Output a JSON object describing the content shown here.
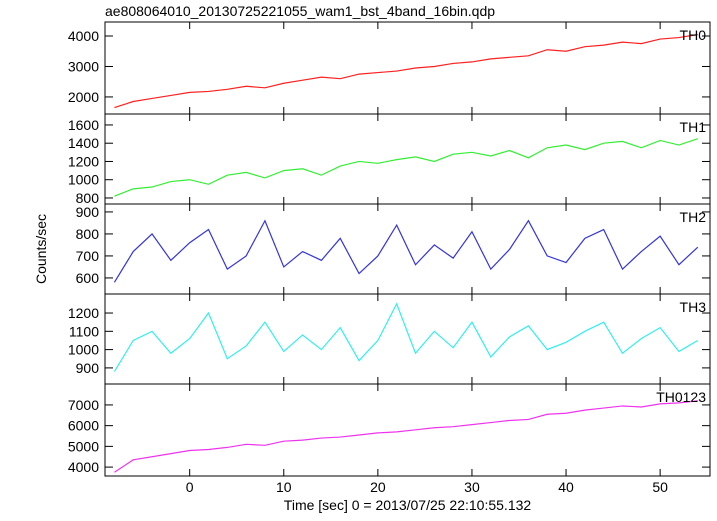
{
  "chart_data": [
    {
      "type": "line",
      "title": "ae808064010_20130725221055_wam1_bst_4band_16bin.qdp",
      "x": [
        -8,
        -6,
        -4,
        -2,
        0,
        2,
        4,
        6,
        8,
        10,
        12,
        14,
        16,
        18,
        20,
        22,
        24,
        26,
        28,
        30,
        32,
        34,
        36,
        38,
        40,
        42,
        44,
        46,
        48,
        50,
        52,
        54
      ],
      "series": [
        {
          "name": "TH0",
          "color": "#ff2020",
          "values": [
            1650,
            1850,
            1950,
            2050,
            2150,
            2180,
            2250,
            2350,
            2300,
            2450,
            2550,
            2650,
            2600,
            2750,
            2800,
            2850,
            2950,
            3000,
            3100,
            3150,
            3250,
            3300,
            3350,
            3550,
            3500,
            3650,
            3700,
            3800,
            3750,
            3900,
            3950,
            4050
          ]
        }
      ],
      "xlim": [
        -9,
        55.3
      ],
      "xticks": [
        0,
        10,
        20,
        30,
        40,
        50
      ],
      "ylim": [
        1440,
        4460
      ],
      "yticks": [
        2000,
        3000,
        4000
      ]
    },
    {
      "type": "line",
      "x": [
        -8,
        -6,
        -4,
        -2,
        0,
        2,
        4,
        6,
        8,
        10,
        12,
        14,
        16,
        18,
        20,
        22,
        24,
        26,
        28,
        30,
        32,
        34,
        36,
        38,
        40,
        42,
        44,
        46,
        48,
        50,
        52,
        54
      ],
      "series": [
        {
          "name": "TH1",
          "color": "#33ee33",
          "values": [
            820,
            900,
            920,
            980,
            1000,
            950,
            1050,
            1080,
            1020,
            1100,
            1120,
            1050,
            1150,
            1200,
            1180,
            1220,
            1250,
            1200,
            1280,
            1300,
            1260,
            1320,
            1240,
            1350,
            1380,
            1330,
            1400,
            1420,
            1350,
            1430,
            1380,
            1450
          ]
        }
      ],
      "xlim": [
        -9,
        55.3
      ],
      "xticks": [
        0,
        10,
        20,
        30,
        40,
        50
      ],
      "ylim": [
        734,
        1720
      ],
      "yticks": [
        800,
        1000,
        1200,
        1400,
        1600
      ]
    },
    {
      "type": "line",
      "ylabel": "Counts/sec",
      "x": [
        -8,
        -6,
        -4,
        -2,
        0,
        2,
        4,
        6,
        8,
        10,
        12,
        14,
        16,
        18,
        20,
        22,
        24,
        26,
        28,
        30,
        32,
        34,
        36,
        38,
        40,
        42,
        44,
        46,
        48,
        50,
        52,
        54
      ],
      "series": [
        {
          "name": "TH2",
          "color": "#3333dd",
          "values": [
            580,
            720,
            800,
            680,
            760,
            820,
            640,
            700,
            860,
            650,
            720,
            680,
            780,
            620,
            700,
            840,
            660,
            750,
            690,
            810,
            640,
            730,
            860,
            700,
            670,
            780,
            820,
            640,
            720,
            790,
            660,
            740
          ]
        }
      ],
      "xlim": [
        -9,
        55.3
      ],
      "xticks": [
        0,
        10,
        20,
        30,
        40,
        50
      ],
      "ylim": [
        527,
        936
      ],
      "yticks": [
        600,
        700,
        800,
        900
      ]
    },
    {
      "type": "line",
      "x": [
        -8,
        -6,
        -4,
        -2,
        0,
        2,
        4,
        6,
        8,
        10,
        12,
        14,
        16,
        18,
        20,
        22,
        24,
        26,
        28,
        30,
        32,
        34,
        36,
        38,
        40,
        42,
        44,
        46,
        48,
        50,
        52,
        54
      ],
      "series": [
        {
          "name": "TH3",
          "color": "#33eeee",
          "values": [
            880,
            1050,
            1100,
            980,
            1060,
            1200,
            950,
            1020,
            1150,
            990,
            1080,
            1000,
            1120,
            940,
            1050,
            1250,
            980,
            1100,
            1010,
            1150,
            960,
            1070,
            1130,
            1000,
            1040,
            1100,
            1150,
            980,
            1060,
            1120,
            990,
            1050
          ]
        }
      ],
      "xlim": [
        -9,
        55.3
      ],
      "xticks": [
        0,
        10,
        20,
        30,
        40,
        50
      ],
      "ylim": [
        812,
        1304
      ],
      "yticks": [
        900,
        1000,
        1100,
        1200
      ]
    },
    {
      "type": "line",
      "xlabel": "Time [sec] 0 = 2013/07/25 22:10:55.132",
      "x": [
        -8,
        -6,
        -4,
        -2,
        0,
        2,
        4,
        6,
        8,
        10,
        12,
        14,
        16,
        18,
        20,
        22,
        24,
        26,
        28,
        30,
        32,
        34,
        36,
        38,
        40,
        42,
        44,
        46,
        48,
        50,
        52,
        54
      ],
      "series": [
        {
          "name": "TH0123",
          "color": "#ee33ee",
          "values": [
            3750,
            4350,
            4500,
            4650,
            4800,
            4850,
            4950,
            5100,
            5050,
            5250,
            5300,
            5400,
            5450,
            5550,
            5650,
            5700,
            5800,
            5900,
            5950,
            6050,
            6150,
            6250,
            6300,
            6550,
            6600,
            6750,
            6850,
            6950,
            6900,
            7050,
            7100,
            7200
          ]
        }
      ],
      "xlim": [
        -9,
        55.3
      ],
      "xticks": [
        0,
        10,
        20,
        30,
        40,
        50
      ],
      "ylim": [
        3570,
        8010
      ],
      "yticks": [
        4000,
        5000,
        6000,
        7000
      ]
    }
  ]
}
